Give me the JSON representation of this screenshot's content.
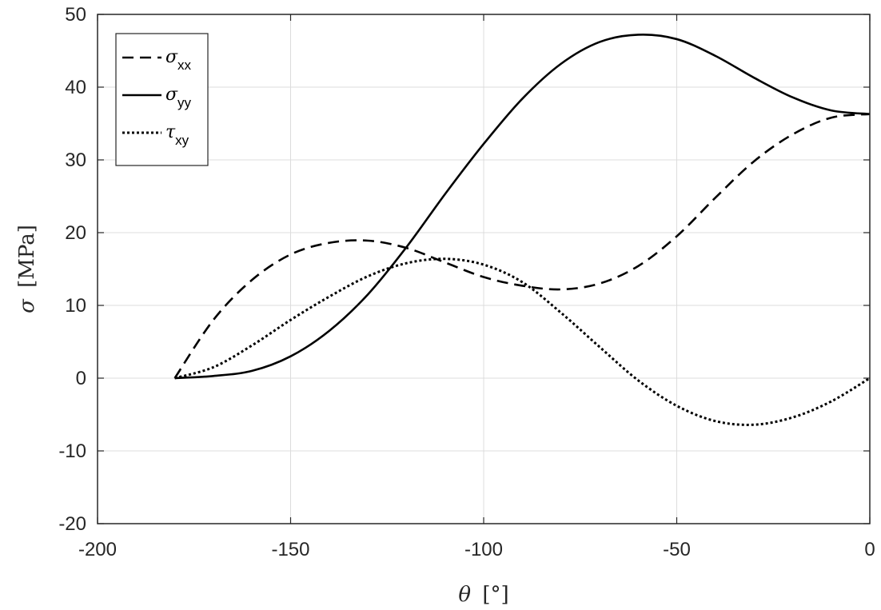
{
  "chart_data": {
    "type": "line",
    "title": "",
    "xlabel_symbol": "θ",
    "xlabel_unit": "[°]",
    "ylabel_symbol": "σ",
    "ylabel_unit": "[MPa]",
    "xlim": [
      -200,
      0
    ],
    "ylim": [
      -20,
      50
    ],
    "xticks": [
      -200,
      -150,
      -100,
      -50,
      0
    ],
    "yticks": [
      -20,
      -10,
      0,
      10,
      20,
      30,
      40,
      50
    ],
    "xtick_labels": [
      "-200",
      "-150",
      "-100",
      "-50",
      "0"
    ],
    "ytick_labels": [
      "-20",
      "-10",
      "0",
      "10",
      "20",
      "30",
      "40",
      "50"
    ],
    "grid": true,
    "legend_position": "top-left",
    "series": [
      {
        "name_symbol": "σ",
        "name_sub": "xx",
        "style": "dashed",
        "color": "#000000",
        "x": [
          -180,
          -170,
          -160,
          -150,
          -140,
          -130,
          -120,
          -110,
          -100,
          -90,
          -80,
          -70,
          -60,
          -50,
          -40,
          -30,
          -20,
          -10,
          0
        ],
        "y": [
          0,
          8.0,
          13.5,
          17.0,
          18.6,
          18.9,
          17.9,
          15.9,
          13.9,
          12.7,
          12.2,
          13.0,
          15.4,
          19.5,
          24.8,
          29.8,
          33.5,
          35.8,
          36.3
        ]
      },
      {
        "name_symbol": "σ",
        "name_sub": "yy",
        "style": "solid",
        "color": "#000000",
        "x": [
          -180,
          -170,
          -160,
          -150,
          -140,
          -130,
          -120,
          -110,
          -100,
          -90,
          -80,
          -70,
          -60,
          -50,
          -40,
          -30,
          -20,
          -10,
          0
        ],
        "y": [
          0,
          0.3,
          1.0,
          3.0,
          6.5,
          11.5,
          18.0,
          25.3,
          32.2,
          38.4,
          43.2,
          46.2,
          47.2,
          46.6,
          44.3,
          41.3,
          38.6,
          36.8,
          36.3
        ]
      },
      {
        "name_symbol": "τ",
        "name_sub": "xy",
        "style": "dotted",
        "color": "#000000",
        "x": [
          -180,
          -170,
          -160,
          -150,
          -140,
          -130,
          -120,
          -110,
          -100,
          -90,
          -80,
          -70,
          -60,
          -50,
          -40,
          -30,
          -20,
          -10,
          0
        ],
        "y": [
          0,
          1.5,
          4.5,
          8.0,
          11.2,
          14.0,
          15.8,
          16.4,
          15.6,
          13.2,
          9.0,
          4.3,
          -0.3,
          -3.8,
          -5.9,
          -6.4,
          -5.4,
          -3.2,
          0
        ]
      }
    ]
  }
}
